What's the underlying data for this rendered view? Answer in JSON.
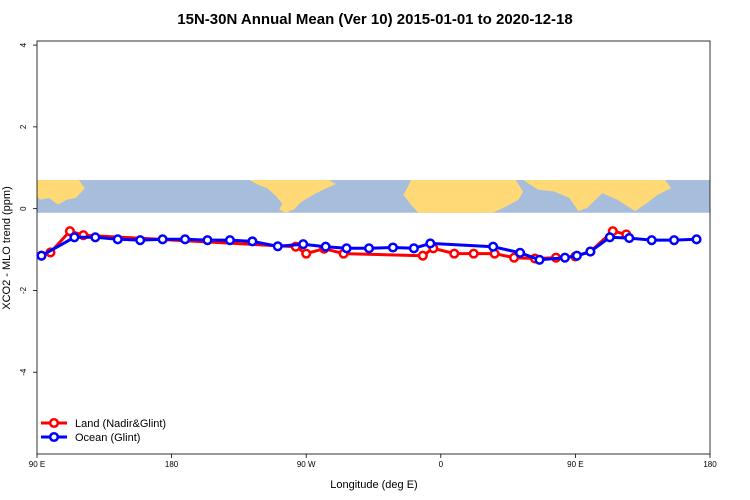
{
  "chart_data": {
    "type": "line",
    "title": "15N-30N Annual Mean (Ver 10)   2015-01-01 to 2020-12-18",
    "xlabel": "Longitude (deg E)",
    "ylabel": "XCO2 - MLO trend (ppm)",
    "xlim": [
      90,
      540
    ],
    "ylim": [
      -6,
      4.1
    ],
    "x_ticks": [
      {
        "value": 90,
        "label": "90 E"
      },
      {
        "value": 180,
        "label": "180"
      },
      {
        "value": 270,
        "label": "90 W"
      },
      {
        "value": 360,
        "label": "0"
      },
      {
        "value": 450,
        "label": "90 E"
      },
      {
        "value": 540,
        "label": "180"
      }
    ],
    "y_ticks": [
      {
        "value": 4,
        "label": "4"
      },
      {
        "value": 2,
        "label": "2"
      },
      {
        "value": 0,
        "label": "0"
      },
      {
        "value": -2,
        "label": "-2"
      },
      {
        "value": -4,
        "label": "-4"
      }
    ],
    "map_band": {
      "ymin": -0.1,
      "ymax": 0.7,
      "ocean_color": "#a6bddb",
      "land_color": "#fed976"
    },
    "legend_position": "bottom-left",
    "series": [
      {
        "name": "Land (Nadir&Glint)",
        "color": "#ff0000",
        "points": [
          [
            93,
            -1.15
          ],
          [
            99,
            -1.07
          ],
          [
            112,
            -0.55
          ],
          [
            121,
            -0.65
          ],
          [
            263,
            -0.93
          ],
          [
            270,
            -1.1
          ],
          [
            282,
            -0.98
          ],
          [
            295,
            -1.1
          ],
          [
            348,
            -1.15
          ],
          [
            355,
            -0.97
          ],
          [
            369,
            -1.1
          ],
          [
            382,
            -1.1
          ],
          [
            396,
            -1.1
          ],
          [
            409,
            -1.2
          ],
          [
            423,
            -1.22
          ],
          [
            437,
            -1.2
          ],
          [
            450,
            -1.17
          ],
          [
            460,
            -1.05
          ],
          [
            475,
            -0.55
          ],
          [
            484,
            -0.63
          ]
        ]
      },
      {
        "name": "Ocean (Glint)",
        "color": "#0000ff",
        "points": [
          [
            93,
            -1.15
          ],
          [
            115,
            -0.7
          ],
          [
            129,
            -0.7
          ],
          [
            144,
            -0.75
          ],
          [
            159,
            -0.77
          ],
          [
            174,
            -0.75
          ],
          [
            189,
            -0.75
          ],
          [
            204,
            -0.77
          ],
          [
            219,
            -0.77
          ],
          [
            234,
            -0.8
          ],
          [
            251,
            -0.92
          ],
          [
            268,
            -0.87
          ],
          [
            283,
            -0.93
          ],
          [
            297,
            -0.97
          ],
          [
            312,
            -0.97
          ],
          [
            328,
            -0.95
          ],
          [
            342,
            -0.97
          ],
          [
            353,
            -0.85
          ],
          [
            395,
            -0.93
          ],
          [
            413,
            -1.08
          ],
          [
            426,
            -1.25
          ],
          [
            443,
            -1.2
          ],
          [
            451,
            -1.15
          ],
          [
            460,
            -1.05
          ],
          [
            473,
            -0.7
          ],
          [
            486,
            -0.72
          ],
          [
            501,
            -0.77
          ],
          [
            516,
            -0.77
          ],
          [
            531,
            -0.75
          ]
        ]
      }
    ]
  }
}
